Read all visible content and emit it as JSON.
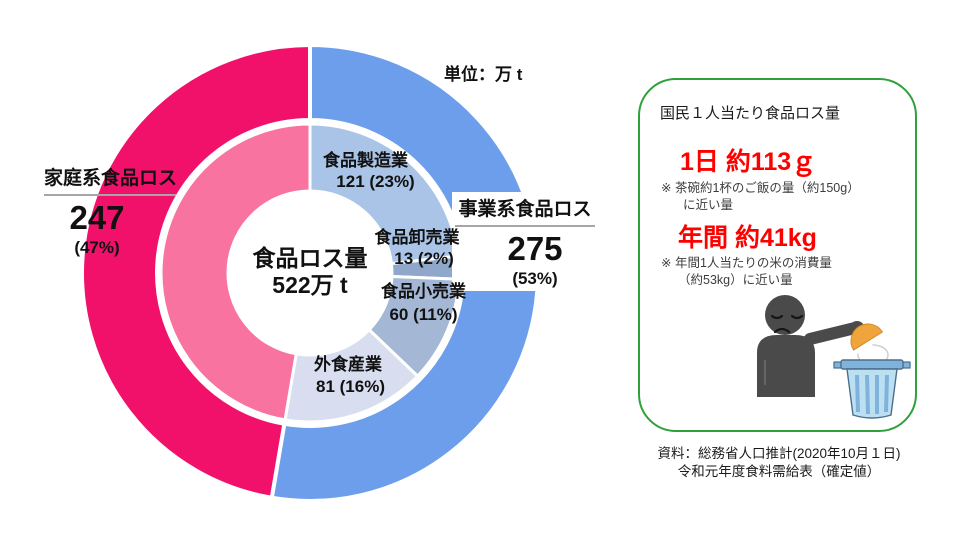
{
  "page": {
    "background": "#FFFFFF"
  },
  "chart_data": {
    "type": "pie",
    "variant": "nested-donut",
    "unit_label": "単位：万 t",
    "total": 522,
    "center_label": {
      "line1": "食品ロス量",
      "line2": "522万 t"
    },
    "outer_ring": [
      {
        "name": "事業系食品ロス",
        "value": 275,
        "value_text": "275",
        "percent_text": "(53%)",
        "color": "#6D9EEB"
      },
      {
        "name": "家庭系食品ロス",
        "value": 247,
        "value_text": "247",
        "percent_text": "(47%)",
        "color": "#F1116B"
      }
    ],
    "inner_ring": [
      {
        "name": "食品製造業",
        "value": 121,
        "value_label": "121 (23%)",
        "color": "#A9C4E7"
      },
      {
        "name": "食品卸売業",
        "value": 13,
        "value_label": "13 (2%)",
        "color": "#8EA7CB"
      },
      {
        "name": "食品小売業",
        "value": 60,
        "value_label": "60 (11%)",
        "color": "#A4B8D6"
      },
      {
        "name": "外食産業",
        "value": 81,
        "value_label": "81 (16%)",
        "color": "#D8DEEF"
      },
      {
        "name": "家庭系食品ロス",
        "value": 247,
        "value_label": "",
        "color": "#F8739F"
      }
    ],
    "start_angle_deg": 0,
    "direction": "clockwise",
    "divider_color": "#FFFFFF"
  },
  "info_box": {
    "border_color": "#2FA03C",
    "headline_color": "#FF0000",
    "title": "国民１人当たり食品ロス量",
    "daily_headline": "1日 約113ｇ",
    "daily_note_line1": "※ 茶碗約1杯のご飯の量（約150g）",
    "daily_note_line2": "に近い量",
    "yearly_headline": "年間 約41kg",
    "yearly_note_line1": "※ 年間1人当たりの米の消費量",
    "yearly_note_line2": "（約53kg）に近い量",
    "illustration": {
      "person_color": "#4A4A4A",
      "bowl_color": "#F0A43C",
      "trash_body_color": "#BDDFF2",
      "trash_rim_color": "#7FB3DC"
    }
  },
  "source": {
    "line1": "資料：総務省人口推計(2020年10月１日)",
    "line2": "令和元年度食料需給表（確定値）"
  }
}
